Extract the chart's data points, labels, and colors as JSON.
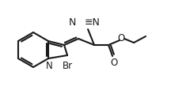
{
  "bg_color": "#ffffff",
  "line_color": "#1a1a1a",
  "line_width": 1.5,
  "text_color": "#1a1a1a",
  "font_size": 8.5,
  "br_label": "Br",
  "n_label": "N",
  "o_label": "O",
  "azide_label": "N≡N"
}
